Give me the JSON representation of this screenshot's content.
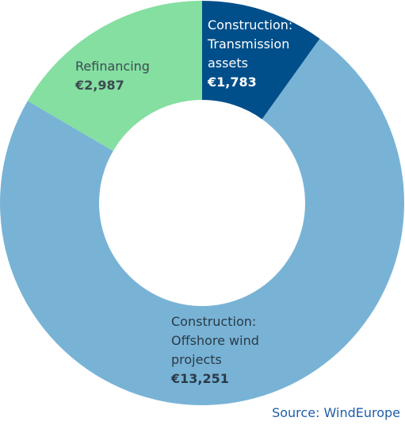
{
  "chart_data": {
    "type": "pie",
    "variant": "donut",
    "slices": [
      {
        "label": "Construction:\nTransmission\nassets",
        "value": 1783,
        "value_label": "€1,783",
        "color": "#004f8a"
      },
      {
        "label": "Construction:\nOffshore wind\nprojects",
        "value": 13251,
        "value_label": "€13,251",
        "color": "#78b3d6"
      },
      {
        "label": "Refinancing",
        "value": 2987,
        "value_label": "€2,987",
        "color": "#84dfa1"
      }
    ],
    "start_angle_deg": 0,
    "direction": "clockwise"
  },
  "source": "Source: WindEurope"
}
